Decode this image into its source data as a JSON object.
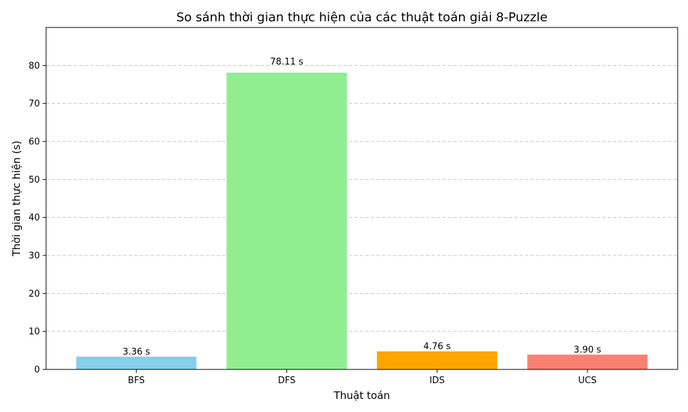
{
  "chart_data": {
    "type": "bar",
    "title": "So sánh thời gian thực hiện của các thuật toán giải 8-Puzzle",
    "xlabel": "Thuật toán",
    "ylabel": "Thời gian thực hiện (s)",
    "categories": [
      "BFS",
      "DFS",
      "IDS",
      "UCS"
    ],
    "values": [
      3.36,
      78.11,
      4.76,
      3.9
    ],
    "value_labels": [
      "3.36 s",
      "78.11 s",
      "4.76 s",
      "3.90 s"
    ],
    "colors": [
      "#87ceeb",
      "#90ee90",
      "#ffa500",
      "#fa8072"
    ],
    "ylim": [
      0,
      90
    ],
    "yticks": [
      0,
      10,
      20,
      30,
      40,
      50,
      60,
      70,
      80
    ],
    "grid": "y-dashed",
    "legend": "none"
  }
}
